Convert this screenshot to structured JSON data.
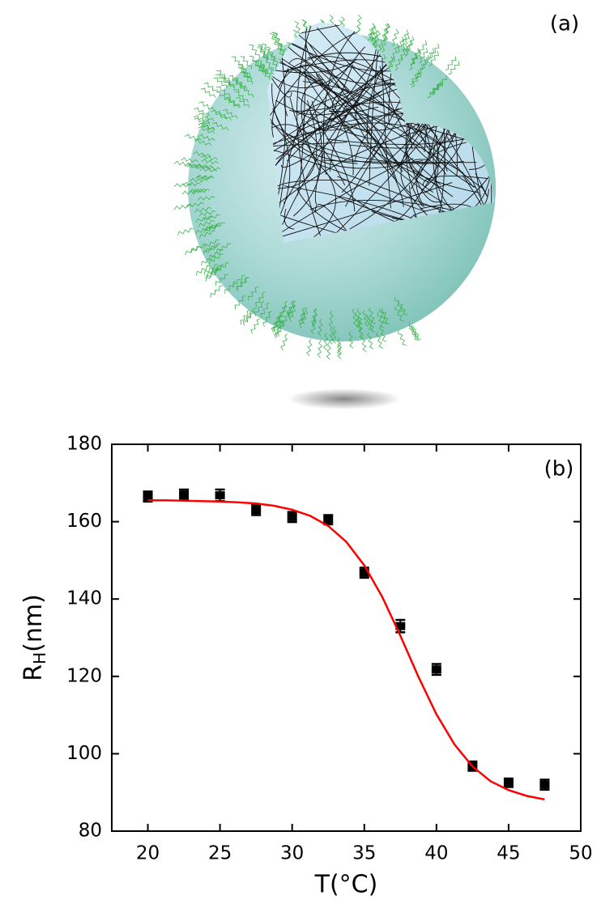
{
  "chart_data": {
    "type": "scatter",
    "panel_labels": [
      "(a)",
      "(b)"
    ],
    "xlabel": "T(°C)",
    "ylabel_parts": [
      "R",
      "H",
      "(nm)"
    ],
    "xlim": [
      17.5,
      50
    ],
    "xticks": [
      20,
      25,
      30,
      35,
      40,
      45,
      50
    ],
    "ylim": [
      80,
      180
    ],
    "yticks": [
      80,
      100,
      120,
      140,
      160,
      180
    ],
    "series": [
      {
        "style": "markers",
        "color": "#000000",
        "x": [
          20,
          22.5,
          25,
          27.5,
          30,
          32.5,
          35,
          37.5,
          40,
          42.5,
          45,
          47.5
        ],
        "values": [
          166.5,
          167,
          166.8,
          163,
          161.2,
          160.5,
          146.8,
          133,
          121.8,
          96.8,
          92.5,
          92
        ],
        "errors": [
          1.3,
          1.3,
          1.5,
          1.3,
          1.3,
          1.2,
          1.3,
          1.6,
          1.4,
          1.2,
          1.1,
          1.3
        ]
      },
      {
        "style": "line",
        "color": "#ff0000",
        "x": [
          20,
          21.25,
          22.5,
          23.75,
          25,
          26.25,
          27.5,
          28.75,
          30,
          31.25,
          32.5,
          33.75,
          35,
          36.25,
          37.5,
          38.75,
          40,
          41.25,
          42.5,
          43.75,
          45,
          46.25,
          47.5
        ],
        "values": [
          165.5,
          165.5,
          165.4,
          165.3,
          165.2,
          165.0,
          164.7,
          164.1,
          163.1,
          161.5,
          158.9,
          154.8,
          148.7,
          140.5,
          130.5,
          119.9,
          110.2,
          102.4,
          96.7,
          92.9,
          90.6,
          89.1,
          88.2
        ]
      }
    ]
  }
}
